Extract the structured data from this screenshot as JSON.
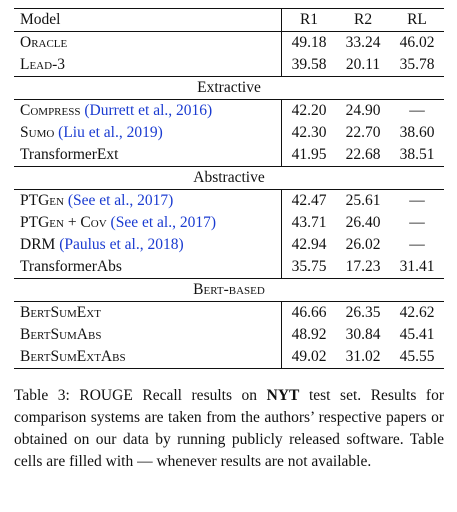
{
  "header": {
    "model": "Model",
    "r1": "R1",
    "r2": "R2",
    "rl": "RL"
  },
  "groups": [
    {
      "title": "",
      "rows": [
        {
          "name": "Oracle",
          "cite": "",
          "r1": "49.18",
          "r2": "33.24",
          "rl": "46.02"
        },
        {
          "name": "Lead-3",
          "cite": "",
          "r1": "39.58",
          "r2": "20.11",
          "rl": "35.78"
        }
      ]
    },
    {
      "title": "Extractive",
      "rows": [
        {
          "name": "Compress",
          "cite": "(Durrett et al., 2016)",
          "r1": "42.20",
          "r2": "24.90",
          "rl": "—"
        },
        {
          "name": "Sumo",
          "cite": "(Liu et al., 2019)",
          "r1": "42.30",
          "r2": "22.70",
          "rl": "38.60"
        },
        {
          "name": "TransformerExt",
          "cite": "",
          "r1": "41.95",
          "r2": "22.68",
          "rl": "38.51"
        }
      ]
    },
    {
      "title": "Abstractive",
      "rows": [
        {
          "name": "PTGen",
          "cite": "(See et al., 2017)",
          "r1": "42.47",
          "r2": "25.61",
          "rl": "—"
        },
        {
          "name": "PTGen + Cov",
          "cite": "(See et al., 2017)",
          "r1": "43.71",
          "r2": "26.40",
          "rl": "—"
        },
        {
          "name": "DRM",
          "cite": "(Paulus et al., 2018)",
          "r1": "42.94",
          "r2": "26.02",
          "rl": "—"
        },
        {
          "name": "TransformerAbs",
          "cite": "",
          "r1": "35.75",
          "r2": "17.23",
          "rl": "31.41"
        }
      ]
    },
    {
      "title": "Bert-based",
      "rows": [
        {
          "name": "BertSumExt",
          "cite": "",
          "r1": "46.66",
          "r2": "26.35",
          "rl": "42.62"
        },
        {
          "name": "BertSumAbs",
          "cite": "",
          "r1": "48.92",
          "r2": "30.84",
          "rl": "45.41"
        },
        {
          "name": "BertSumExtAbs",
          "cite": "",
          "r1": "49.02",
          "r2": "31.02",
          "rl": "45.55"
        }
      ]
    }
  ],
  "caption": {
    "prefix": "Table 3:  ROUGE Recall results on ",
    "bold": "NYT",
    "suffix": " test set. Results for comparison systems are taken from the authors’ respective papers or obtained on our data by running publicly released software. Table cells are filled with — whenever results are not available."
  }
}
